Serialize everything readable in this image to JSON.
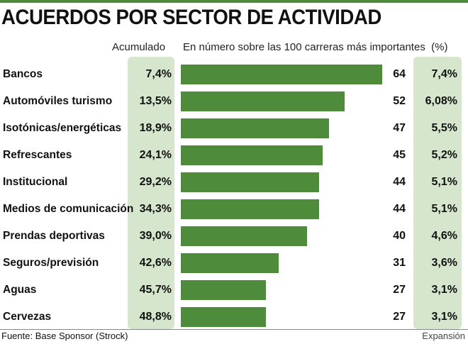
{
  "chart_data": {
    "type": "bar",
    "title": "ACUERDOS POR SECTOR DE ACTIVIDAD",
    "col_acumulado_label": "Acumulado",
    "col_numero_label": "En número sobre las 100 carreras más importantes",
    "col_pct_label": "(%)",
    "categories": [
      "Bancos",
      "Automóviles turismo",
      "Isotónicas/energéticas",
      "Refrescantes",
      "Institucional",
      "Medios de comunicación",
      "Prendas deportivas",
      "Seguros/previsión",
      "Aguas",
      "Cervezas"
    ],
    "values": [
      64,
      52,
      47,
      45,
      44,
      44,
      40,
      31,
      27,
      27
    ],
    "value_labels": [
      "64",
      "52",
      "47",
      "45",
      "44",
      "44",
      "40",
      "31",
      "27",
      "27"
    ],
    "percent_labels": [
      "7,4%",
      "6,08%",
      "5,5%",
      "5,2%",
      "5,1%",
      "5,1%",
      "4,6%",
      "3,6%",
      "3,1%",
      "3,1%"
    ],
    "acumulado_labels": [
      "7,4%",
      "13,5%",
      "18,9%",
      "24,1%",
      "29,2%",
      "34,3%",
      "39,0%",
      "42,6%",
      "45,7%",
      "48,8%"
    ],
    "xlim": [
      0,
      64
    ],
    "bar_color": "#4e8b3a",
    "column_highlight_color": "#d5e6cd"
  },
  "footer": {
    "source_prefix": "Fuente:",
    "source_text": "Base Sponsor (Strock)",
    "brand": "Expansión"
  }
}
